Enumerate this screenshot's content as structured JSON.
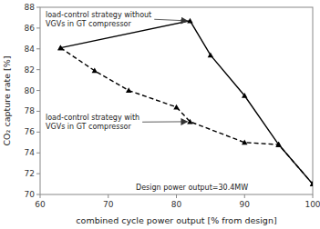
{
  "chart_data": {
    "type": "line",
    "xlabel": "combined cycle power output [% from design]",
    "ylabel": "CO₂ capture rate [%]",
    "xlim": [
      60,
      100
    ],
    "ylim": [
      70,
      88
    ],
    "xticks": [
      60,
      70,
      80,
      90,
      100
    ],
    "yticks": [
      70,
      72,
      74,
      76,
      78,
      80,
      82,
      84,
      86,
      88
    ],
    "grid": false,
    "series": [
      {
        "x": [
          63,
          82,
          85,
          90,
          95,
          100
        ],
        "values": [
          84.1,
          86.7,
          83.4,
          79.5,
          74.8,
          71.0
        ],
        "color": "black",
        "marker": "triangle",
        "line_style": "solid"
      },
      {
        "x": [
          63,
          68,
          73,
          80,
          82,
          90,
          95,
          100
        ],
        "values": [
          84.1,
          81.9,
          80.0,
          78.4,
          77.0,
          75.0,
          74.8,
          71.0
        ],
        "color": "black",
        "marker": "triangle",
        "line_style": "dashed"
      }
    ],
    "annotations": [
      {
        "text": "load-control strategy without\nVGVs in GT compressor",
        "x": 82,
        "y": 86.7
      },
      {
        "text": "load-control strategy with\nVGVs in GT compressor",
        "x": 82,
        "y": 77.0
      },
      {
        "text": "Design power output=30.4MW"
      }
    ]
  }
}
